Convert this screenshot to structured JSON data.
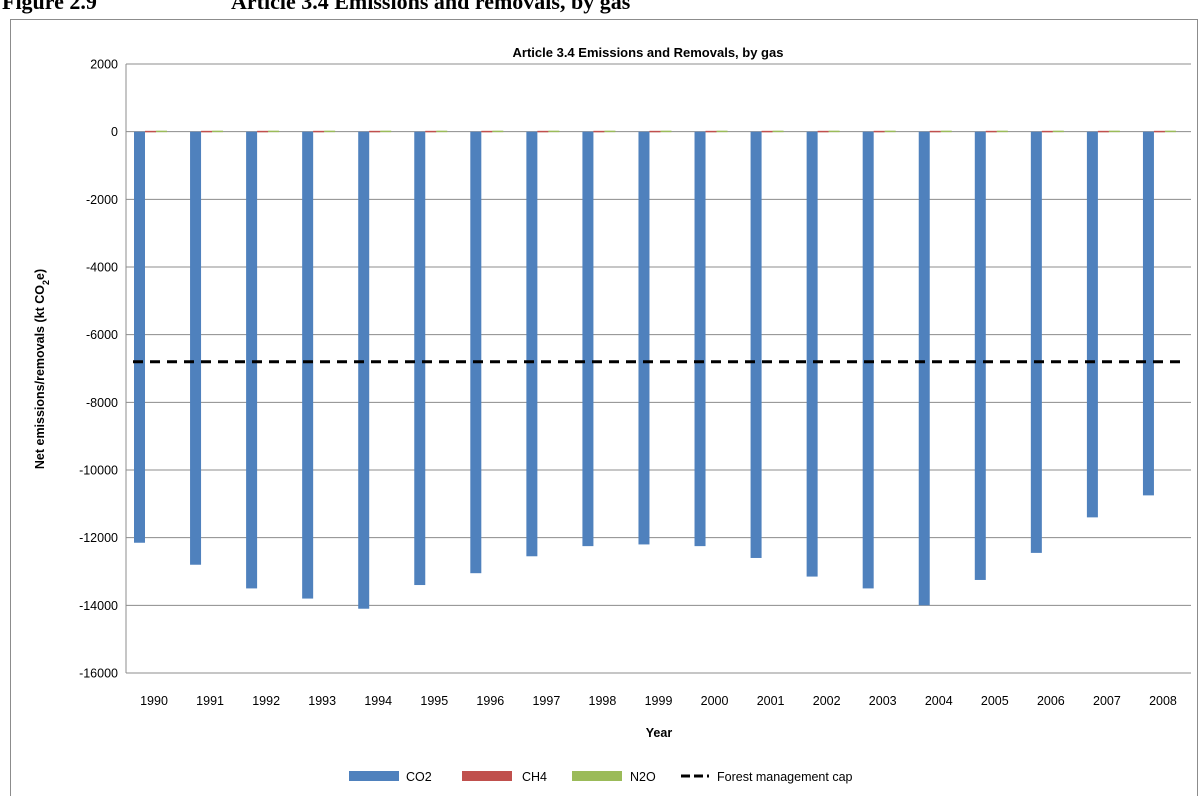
{
  "page": {
    "caption_number": "Figure 2.9",
    "caption_text": "Article 3.4 Emissions and removals, by gas"
  },
  "chart_data": {
    "type": "bar",
    "title": "Article 3.4 Emissions and Removals, by gas",
    "xlabel": "Year",
    "ylabel_parts": [
      "Net emissions/removals (kt CO",
      "2",
      "e)"
    ],
    "ylim": [
      -16000,
      2000
    ],
    "yticks": [
      2000,
      0,
      -2000,
      -4000,
      -6000,
      -8000,
      -10000,
      -12000,
      -14000,
      -16000
    ],
    "grid": true,
    "legend_position": "bottom",
    "categories": [
      "1990",
      "1991",
      "1992",
      "1993",
      "1994",
      "1995",
      "1996",
      "1997",
      "1998",
      "1999",
      "2000",
      "2001",
      "2002",
      "2003",
      "2004",
      "2005",
      "2006",
      "2007",
      "2008"
    ],
    "series": [
      {
        "name": "CO2",
        "color": "#4f81bd",
        "values": [
          -12150,
          -12800,
          -13500,
          -13800,
          -14100,
          -13400,
          -13050,
          -12550,
          -12250,
          -12200,
          -12250,
          -12600,
          -13150,
          -13500,
          -14000,
          -13250,
          -12450,
          -11400,
          -10750
        ]
      },
      {
        "name": "CH4",
        "color": "#c0504d",
        "values": [
          25,
          25,
          25,
          25,
          25,
          25,
          25,
          25,
          25,
          25,
          25,
          25,
          25,
          25,
          25,
          25,
          25,
          25,
          25
        ]
      },
      {
        "name": "N2O",
        "color": "#9bbb59",
        "values": [
          30,
          30,
          30,
          30,
          30,
          30,
          30,
          30,
          30,
          30,
          30,
          30,
          30,
          30,
          30,
          30,
          30,
          30,
          30
        ]
      }
    ],
    "reference_line": {
      "name": "Forest management cap",
      "value": -6800,
      "color": "#000000",
      "style": "dashed"
    }
  }
}
